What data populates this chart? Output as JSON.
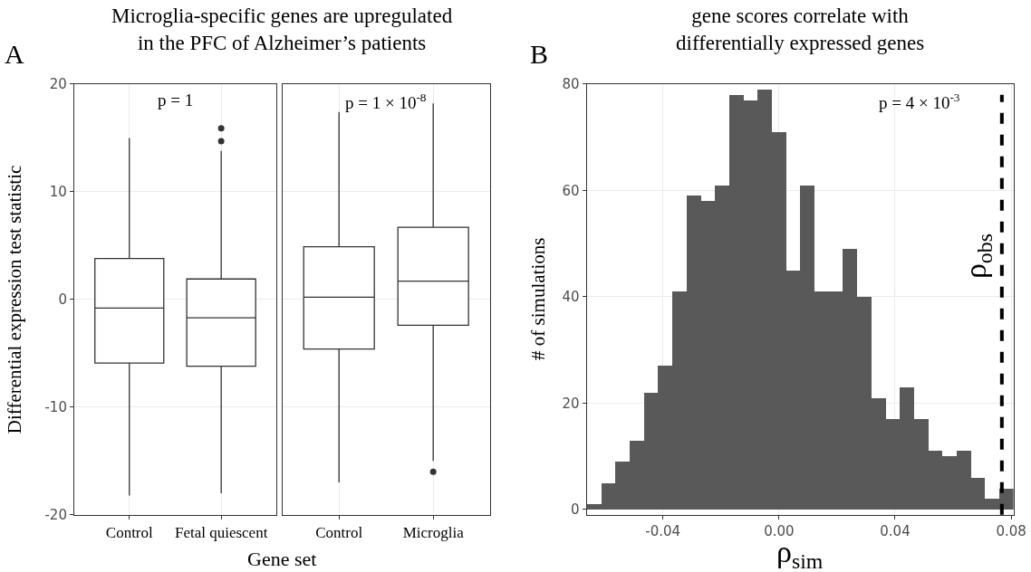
{
  "chart_data": [
    {
      "type": "box",
      "title": "Microglia-specific genes are upregulated\nin the PFC of Alzheimer’s patients",
      "xlabel": "Gene set",
      "ylabel": "Differential expression test statistic",
      "categories": [
        "Control",
        "Fetal quiescent"
      ],
      "color": "#333333",
      "boxes": [
        {
          "low": -18.2,
          "q1": -5.9,
          "median": -0.8,
          "q3": 3.8,
          "high": 15.0
        },
        {
          "low": -18.0,
          "q1": -6.2,
          "median": -1.7,
          "q3": 1.9,
          "high": 13.8,
          "outliers": [
            14.7,
            15.9
          ]
        }
      ],
      "ylim": [
        -20,
        20
      ],
      "yticks": [
        -20,
        -10,
        0,
        10,
        20
      ],
      "grid": true,
      "annotations": [
        "A",
        "p = 1"
      ]
    },
    {
      "type": "box",
      "categories": [
        "Control",
        "Microglia"
      ],
      "color": "#333333",
      "boxes": [
        {
          "low": -17.0,
          "q1": -4.6,
          "median": 0.2,
          "q3": 4.9,
          "high": 17.4
        },
        {
          "low": -15.0,
          "q1": -2.4,
          "median": 1.7,
          "q3": 6.7,
          "high": 18.2,
          "outliers": [
            -16.0
          ]
        }
      ],
      "ylim": [
        -20,
        20
      ],
      "yticks": [
        -20,
        -10,
        0,
        10,
        20
      ],
      "tick_labels": "x",
      "grid": true,
      "annotations": [
        "p = 1 × 10$^{-8}$"
      ]
    },
    {
      "type": "histogram",
      "title": "gene scores correlate with\ndifferentially expressed genes",
      "xlabel": "ρ$_{sim}$",
      "ylabel": "# of simulations",
      "color": "#595959",
      "bins": [
        -0.0663,
        -0.0614,
        -0.0565,
        -0.0516,
        -0.0467,
        -0.0418,
        -0.0369,
        -0.032,
        -0.0271,
        -0.0222,
        -0.0173,
        -0.0124,
        -0.0075,
        -0.0026,
        0.0023,
        0.0072,
        0.0121,
        0.017,
        0.0219,
        0.0268,
        0.0317,
        0.0366,
        0.0415,
        0.0464,
        0.0513,
        0.0562,
        0.0611,
        0.066,
        0.0709,
        0.0758,
        0.0807
      ],
      "values": [
        1,
        5,
        9,
        13,
        22,
        27,
        41,
        59,
        58,
        61,
        78,
        77,
        79,
        71,
        45,
        61,
        41,
        41,
        49,
        40,
        21,
        17,
        23,
        17,
        11,
        10,
        11,
        6,
        2,
        4
      ],
      "xlim": [
        -0.0663,
        0.0808
      ],
      "xticks": [
        {
          "value": -0.04,
          "label": "-0.04"
        },
        {
          "value": 0,
          "label": "0.00"
        },
        {
          "value": 0.04,
          "label": "0.04"
        },
        {
          "value": 0.08,
          "label": "0.08"
        }
      ],
      "ylim": [
        -1,
        80
      ],
      "yticks": [
        0,
        20,
        40,
        60,
        80
      ],
      "grid": true,
      "ref_lines": [
        {
          "axis": "x",
          "value": 0.0768,
          "label": "ρ$_{obs}$",
          "color": "#000000",
          "line_style": "dashed"
        }
      ],
      "annotations": [
        "B",
        "p = 4 × 10$^{-3}$"
      ]
    }
  ]
}
